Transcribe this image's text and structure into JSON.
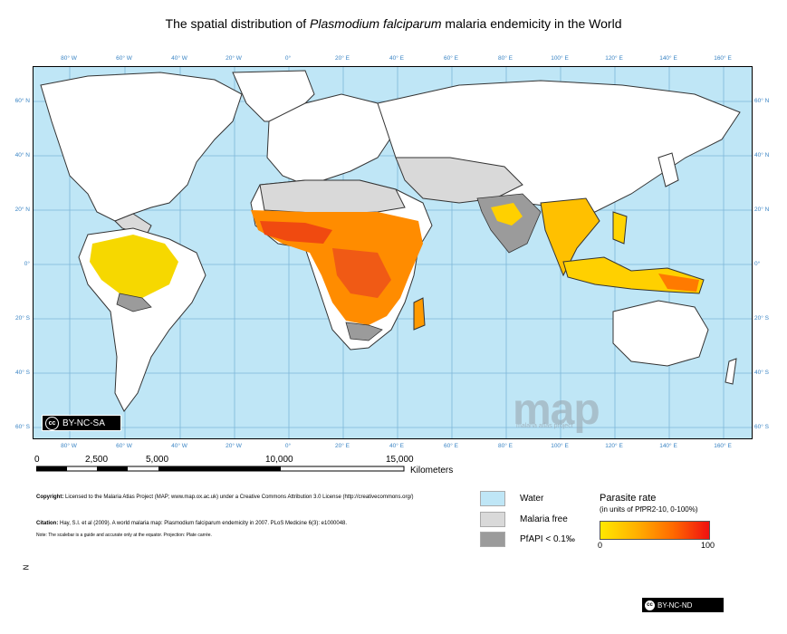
{
  "title": {
    "prefix": "The spatial distribution of ",
    "species": "Plasmodium falciparum",
    "suffix": " malaria endemicity in the World"
  },
  "longitude_labels": [
    "80° W",
    "60° W",
    "40° W",
    "20° W",
    "0°",
    "20° E",
    "40° E",
    "60° E",
    "80° E",
    "100° E",
    "120° E",
    "140° E",
    "160° E"
  ],
  "latitude_labels": [
    "60° N",
    "40° N",
    "20° N",
    "0°",
    "20° S",
    "40° S",
    "60° S"
  ],
  "map_badge": {
    "icon": "cc",
    "text": "BY-NC-SA"
  },
  "logo": {
    "text": "map",
    "subtitle": "malaria atlas project"
  },
  "scale": {
    "ticks": [
      "0",
      "2,500",
      "5,000",
      "10,000",
      "15,000"
    ],
    "unit": "Kilometers"
  },
  "notes": {
    "copyright_label": "Copyright:",
    "copyright_text": "Licensed to the Malaria Atlas Project (MAP; www.map.ox.ac.uk) under a Creative Commons Attribution 3.0 License (http://creativecommons.org/)",
    "citation_label": "Citation:",
    "citation_text": "Hay, S.I. et al (2009). A world malaria map: Plasmodium falciparum endemicity in 2007. PLoS Medicine 6(3): e1000048.",
    "note_text": "Note: The scalebar is a guide and accurate only at the equator. Projection: Plate carrée."
  },
  "legend": {
    "items": [
      {
        "label": "Water",
        "color": "#bfe6f6"
      },
      {
        "label": "Malaria free",
        "color": "#d9d9d9"
      },
      {
        "label": "PfAPI < 0.1‰",
        "color": "#9b9b9b"
      }
    ],
    "parasite_title": "Parasite rate",
    "parasite_subtitle": "(in units of PfPR2-10, 0-100%)",
    "ramp_min": "0",
    "ramp_max": "100",
    "ramp_colors": [
      "#ffe800",
      "#ffb000",
      "#ff6a00",
      "#f01010"
    ]
  },
  "north_label": "N",
  "footer_badge": {
    "icon": "cc",
    "text": "BY-NC-ND"
  }
}
